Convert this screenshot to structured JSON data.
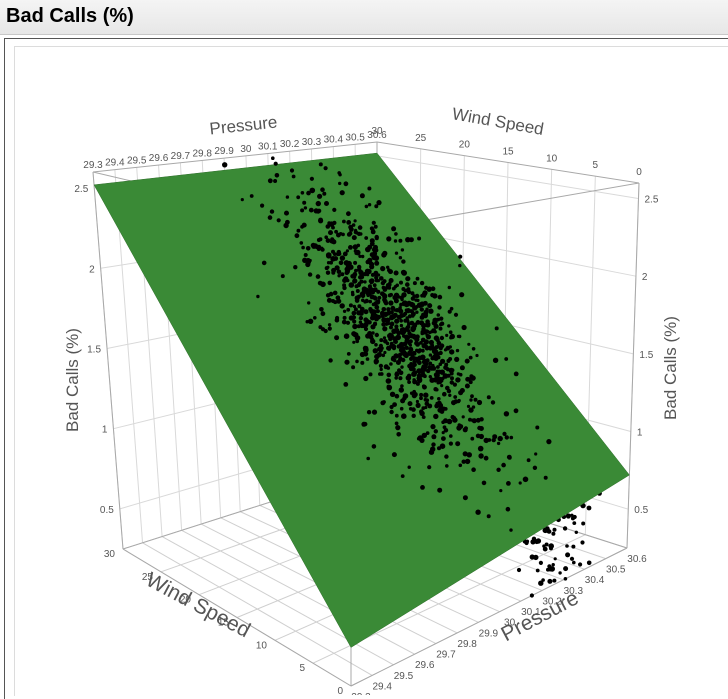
{
  "window": {
    "title": "Bad Calls (%)"
  },
  "chart_data": {
    "type": "scatter",
    "subtype": "3d-scatter-with-fitted-plane",
    "title": "Bad Calls (%)",
    "xlabel": "Pressure",
    "ylabel": "Wind Speed",
    "zlabel": "Bad Calls (%)",
    "xlim": [
      29.3,
      30.6
    ],
    "ylim": [
      0,
      30
    ],
    "zlim": [
      0.25,
      2.6
    ],
    "x_ticks": [
      "29.3",
      "29.4",
      "29.5",
      "29.6",
      "29.7",
      "29.8",
      "29.9",
      "30",
      "30.1",
      "30.2",
      "30.3",
      "30.4",
      "30.5",
      "30.6"
    ],
    "x_ticks_top": [
      "29.3",
      "29.4",
      "29.5",
      "29.6",
      "29.7",
      "29.8",
      "29.9",
      "30",
      "30.1",
      "30.2",
      "30.3",
      "30.4",
      "30.5",
      "30.6"
    ],
    "y_ticks": [
      "0",
      "5",
      "10",
      "15",
      "20",
      "25",
      "30"
    ],
    "y_ticks_top": [
      "30",
      "25",
      "20",
      "15",
      "10",
      "5",
      "0"
    ],
    "z_ticks": [
      "0.5",
      "1",
      "1.5",
      "2",
      "2.5"
    ],
    "surface": {
      "name": "fitted plane",
      "color": "#3a8a36",
      "z_at_corners": [
        {
          "pressure": 29.3,
          "wind": 0,
          "z": 0.45
        },
        {
          "pressure": 30.6,
          "wind": 0,
          "z": 0.72
        },
        {
          "pressure": 30.6,
          "wind": 30,
          "z": 2.52
        },
        {
          "pressure": 29.3,
          "wind": 30,
          "z": 2.52
        }
      ]
    },
    "points_color": "#000000",
    "point_clusters": [
      {
        "pressure_mean": 30.05,
        "pressure_sd": 0.12,
        "wind_mean": 14,
        "wind_sd": 5,
        "count": 1000,
        "position": "above-plane"
      },
      {
        "pressure_mean": 30.32,
        "pressure_sd": 0.08,
        "wind_mean": 4,
        "wind_sd": 2.5,
        "count": 240,
        "position": "below-plane"
      }
    ],
    "grid": true,
    "legend": "none"
  }
}
